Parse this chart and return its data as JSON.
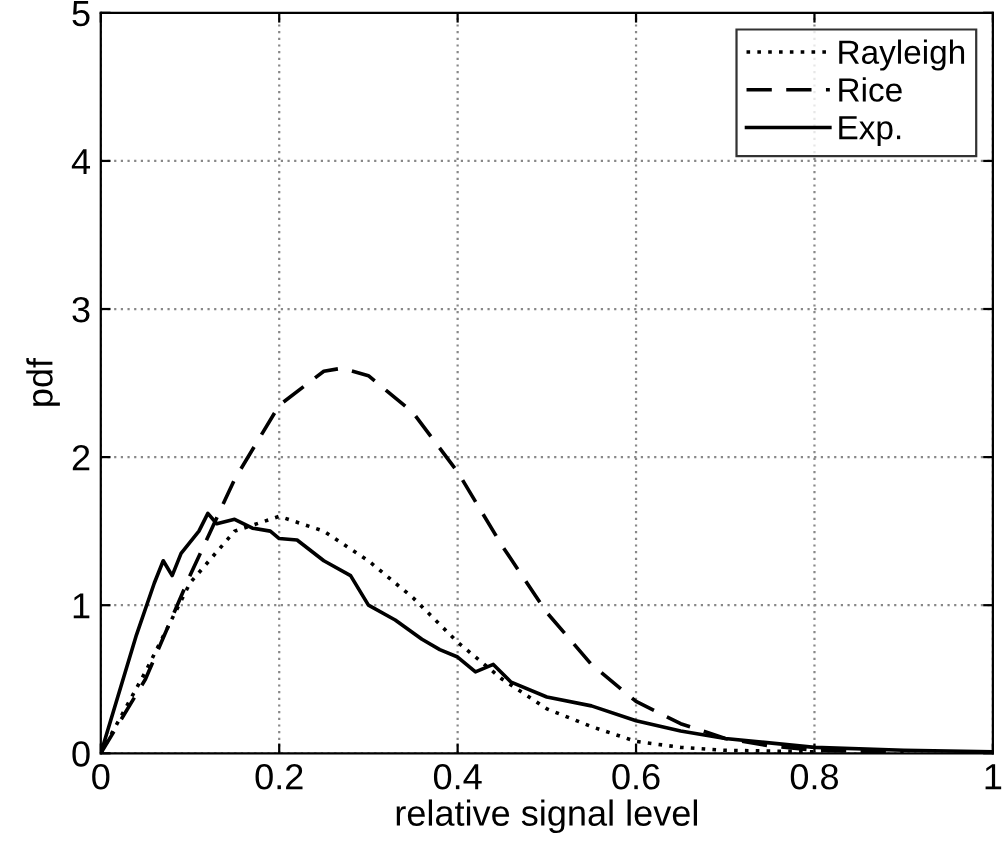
{
  "chart_data": {
    "type": "line",
    "xlabel": "relative signal level",
    "ylabel": "pdf",
    "xlim": [
      0,
      1
    ],
    "ylim": [
      0,
      5
    ],
    "xticks": [
      0,
      0.2,
      0.4,
      0.6,
      0.8,
      1
    ],
    "yticks": [
      0,
      1,
      2,
      3,
      4,
      5
    ],
    "grid": true,
    "legend": "top right",
    "series": [
      {
        "name": "Rayleigh",
        "color": "#000000",
        "line_style": "dotted",
        "x": [
          0,
          0.05,
          0.1,
          0.15,
          0.2,
          0.25,
          0.3,
          0.35,
          0.4,
          0.45,
          0.5,
          0.55,
          0.6,
          0.65,
          0.7,
          0.8
        ],
        "values": [
          0,
          0.55,
          1.15,
          1.5,
          1.6,
          1.5,
          1.3,
          1.05,
          0.75,
          0.5,
          0.3,
          0.18,
          0.08,
          0.04,
          0.02,
          0.01
        ]
      },
      {
        "name": "Rice",
        "color": "#000000",
        "line_style": "dashed",
        "x": [
          0,
          0.05,
          0.1,
          0.15,
          0.2,
          0.25,
          0.27,
          0.3,
          0.35,
          0.4,
          0.45,
          0.5,
          0.55,
          0.6,
          0.65,
          0.7,
          0.75,
          0.8,
          0.9
        ],
        "values": [
          0,
          0.5,
          1.2,
          1.85,
          2.35,
          2.58,
          2.6,
          2.55,
          2.3,
          1.9,
          1.4,
          0.95,
          0.6,
          0.35,
          0.2,
          0.1,
          0.05,
          0.02,
          0.01
        ]
      },
      {
        "name": "Exp.",
        "color": "#000000",
        "line_style": "solid",
        "x": [
          0,
          0.02,
          0.04,
          0.06,
          0.07,
          0.08,
          0.09,
          0.11,
          0.12,
          0.13,
          0.15,
          0.17,
          0.19,
          0.2,
          0.22,
          0.25,
          0.28,
          0.3,
          0.33,
          0.36,
          0.38,
          0.4,
          0.42,
          0.44,
          0.46,
          0.5,
          0.55,
          0.6,
          0.65,
          0.7,
          0.8,
          0.9,
          1.0
        ],
        "values": [
          0,
          0.4,
          0.8,
          1.15,
          1.3,
          1.2,
          1.35,
          1.5,
          1.62,
          1.55,
          1.58,
          1.52,
          1.5,
          1.45,
          1.44,
          1.3,
          1.2,
          1.0,
          0.9,
          0.77,
          0.7,
          0.65,
          0.55,
          0.6,
          0.48,
          0.38,
          0.32,
          0.22,
          0.15,
          0.1,
          0.04,
          0.02,
          0.01
        ]
      }
    ]
  }
}
